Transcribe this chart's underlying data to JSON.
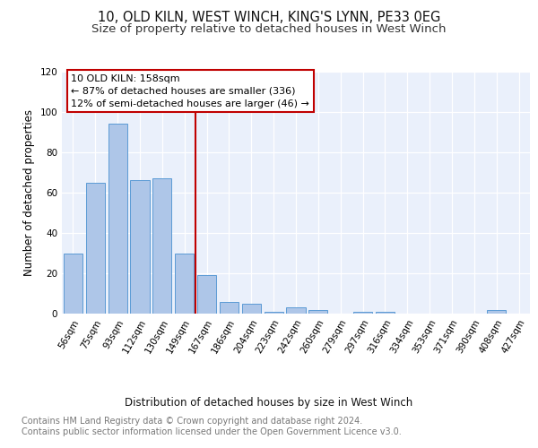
{
  "title1": "10, OLD KILN, WEST WINCH, KING'S LYNN, PE33 0EG",
  "title2": "Size of property relative to detached houses in West Winch",
  "xlabel": "Distribution of detached houses by size in West Winch",
  "ylabel": "Number of detached properties",
  "categories": [
    "56sqm",
    "75sqm",
    "93sqm",
    "112sqm",
    "130sqm",
    "149sqm",
    "167sqm",
    "186sqm",
    "204sqm",
    "223sqm",
    "242sqm",
    "260sqm",
    "279sqm",
    "297sqm",
    "316sqm",
    "334sqm",
    "353sqm",
    "371sqm",
    "390sqm",
    "408sqm",
    "427sqm"
  ],
  "values": [
    30,
    65,
    94,
    66,
    67,
    30,
    19,
    6,
    5,
    1,
    3,
    2,
    0,
    1,
    1,
    0,
    0,
    0,
    0,
    2,
    0
  ],
  "bar_color": "#aec6e8",
  "bar_edge_color": "#5b9bd5",
  "ylim": [
    0,
    120
  ],
  "yticks": [
    0,
    20,
    40,
    60,
    80,
    100,
    120
  ],
  "vline_x": 5.5,
  "vline_color": "#c00000",
  "annotation_text": "10 OLD KILN: 158sqm\n← 87% of detached houses are smaller (336)\n12% of semi-detached houses are larger (46) →",
  "annotation_box_color": "#ffffff",
  "annotation_box_edge": "#c00000",
  "background_color": "#eaf0fb",
  "footer_text": "Contains HM Land Registry data © Crown copyright and database right 2024.\nContains public sector information licensed under the Open Government Licence v3.0.",
  "title_fontsize": 10.5,
  "subtitle_fontsize": 9.5,
  "axis_label_fontsize": 8.5,
  "tick_fontsize": 7.5,
  "footer_fontsize": 7,
  "ann_fontsize": 8
}
